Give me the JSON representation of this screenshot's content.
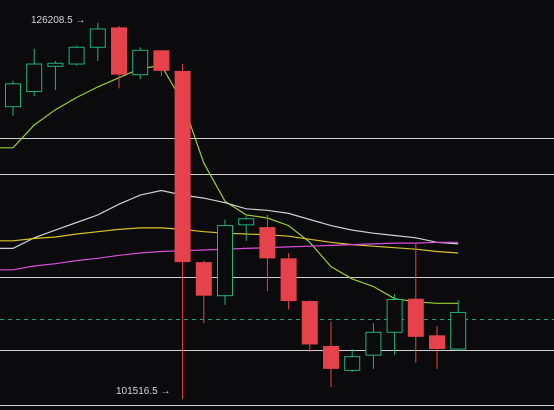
{
  "chart_data": {
    "type": "candlestick",
    "title": "",
    "xlabel": "",
    "ylabel": "",
    "price_range": [
      100800,
      127700
    ],
    "colors": {
      "background": "#0b0b0d",
      "up": "#20b07a",
      "down": "#e5424b",
      "level_line": "#cfcfcf",
      "dashed_line": "#1fa67a",
      "ma_green": "#9acd32",
      "ma_white": "#cfcfcf",
      "ma_yellow": "#d9c227",
      "ma_magenta": "#d94fd9"
    },
    "annotations": {
      "high_label": "126208.5 →",
      "low_label": "101516.5 →"
    },
    "candles": [
      {
        "open": 120700,
        "high": 122400,
        "low": 120100,
        "close": 122200
      },
      {
        "open": 121700,
        "high": 124500,
        "low": 121400,
        "close": 123500
      },
      {
        "open": 123350,
        "high": 123700,
        "low": 121800,
        "close": 123550
      },
      {
        "open": 123500,
        "high": 124700,
        "low": 123400,
        "close": 124600
      },
      {
        "open": 124600,
        "high": 126208.5,
        "low": 123700,
        "close": 125800
      },
      {
        "open": 125900,
        "high": 126000,
        "low": 121900,
        "close": 122800
      },
      {
        "open": 122800,
        "high": 124600,
        "low": 122500,
        "close": 124400
      },
      {
        "open": 124400,
        "high": 124400,
        "low": 122700,
        "close": 123050
      },
      {
        "open": 123050,
        "high": 123500,
        "low": 101516.5,
        "close": 110500
      },
      {
        "open": 110500,
        "high": 110600,
        "low": 106500,
        "close": 108300
      },
      {
        "open": 108300,
        "high": 113300,
        "low": 107700,
        "close": 112900
      },
      {
        "open": 112950,
        "high": 113500,
        "low": 111900,
        "close": 113350
      },
      {
        "open": 112800,
        "high": 113600,
        "low": 108600,
        "close": 110750
      },
      {
        "open": 110750,
        "high": 111100,
        "low": 107400,
        "close": 107950
      },
      {
        "open": 107950,
        "high": 108000,
        "low": 104600,
        "close": 105100
      },
      {
        "open": 105000,
        "high": 106600,
        "low": 102300,
        "close": 103500
      },
      {
        "open": 103400,
        "high": 104800,
        "low": 103300,
        "close": 104300
      },
      {
        "open": 104400,
        "high": 106500,
        "low": 103500,
        "close": 105900
      },
      {
        "open": 105900,
        "high": 108400,
        "low": 104400,
        "close": 108050
      },
      {
        "open": 108100,
        "high": 111700,
        "low": 103900,
        "close": 105600
      },
      {
        "open": 105700,
        "high": 106300,
        "low": 103500,
        "close": 104800
      },
      {
        "open": 104800,
        "high": 108000,
        "low": 104700,
        "close": 107200
      }
    ],
    "moving_averages": [
      {
        "color_key": "ma_green",
        "values": [
          118000,
          119500,
          120500,
          121300,
          122000,
          122600,
          123200,
          123400,
          121000,
          117000,
          114500,
          113600,
          113400,
          112900,
          111800,
          110200,
          109400,
          108900,
          108100,
          107900,
          107800,
          107800
        ]
      },
      {
        "color_key": "ma_white",
        "values": [
          111400,
          112100,
          112600,
          113100,
          113600,
          114300,
          114900,
          115200,
          114900,
          114700,
          114400,
          114000,
          113900,
          113700,
          113300,
          112900,
          112600,
          112400,
          112250,
          112100,
          111800,
          111700
        ]
      },
      {
        "color_key": "ma_yellow",
        "values": [
          111900,
          112050,
          112150,
          112350,
          112500,
          112650,
          112750,
          112750,
          112650,
          112500,
          112400,
          112350,
          112300,
          112200,
          112000,
          111800,
          111650,
          111550,
          111450,
          111350,
          111200,
          111100
        ]
      },
      {
        "color_key": "ma_magenta",
        "values": [
          110000,
          110250,
          110400,
          110600,
          110750,
          110950,
          111100,
          111200,
          111250,
          111300,
          111350,
          111400,
          111450,
          111500,
          111550,
          111600,
          111650,
          111700,
          111750,
          111750,
          111800,
          111800
        ]
      }
    ],
    "horizontal_levels": [
      118650,
      116300,
      109550,
      104750,
      101150,
      100800
    ],
    "dashed_level": 106750
  }
}
